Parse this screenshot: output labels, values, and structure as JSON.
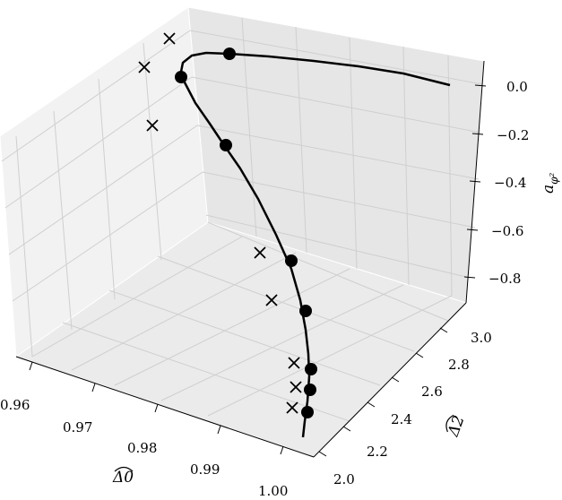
{
  "chart_data": {
    "type": "scatter3d",
    "title": "",
    "axes": {
      "x": {
        "label": "Δ̂0",
        "label_text": "Δ0",
        "ticks": [
          "0.96",
          "0.97",
          "0.98",
          "0.99",
          "1.00"
        ],
        "range": [
          0.955,
          1.004
        ]
      },
      "y": {
        "label": "Δ̂2",
        "label_text": "Δ2",
        "ticks": [
          "2.0",
          "2.2",
          "2.4",
          "2.6",
          "2.8",
          "3.0"
        ],
        "range": [
          1.98,
          3.1
        ]
      },
      "z": {
        "label": "a_{φ²}",
        "label_text": "a",
        "label_sub": "φ²",
        "ticks": [
          "0.0",
          "−0.2",
          "−0.4",
          "−0.6",
          "−0.8"
        ],
        "range": [
          -0.9,
          0.05
        ]
      }
    },
    "grid": true,
    "series": [
      {
        "kind": "curve",
        "color": "#000000"
      },
      {
        "kind": "points",
        "marker": "circle",
        "color": "#000000"
      },
      {
        "kind": "points",
        "marker": "x",
        "color": "#000000"
      }
    ]
  },
  "colors": {
    "pane_left": "#f2f2f2",
    "pane_right": "#e6e6e6",
    "pane_floor": "#ebebeb",
    "grid": "#c8c8c8",
    "ink": "#000000"
  }
}
